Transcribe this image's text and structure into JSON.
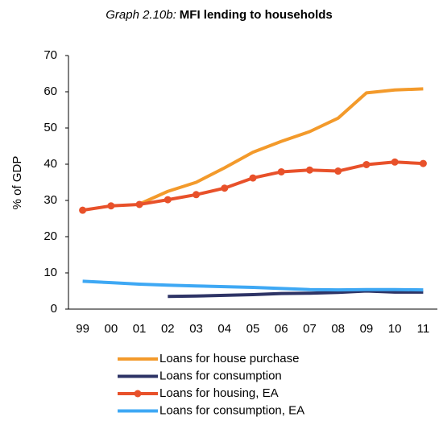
{
  "chart_data": {
    "type": "line",
    "title_label": "Graph 2.10b:",
    "title": "MFI lending to households",
    "y_label": "% of GDP",
    "categories": [
      "99",
      "00",
      "01",
      "02",
      "03",
      "04",
      "05",
      "06",
      "07",
      "08",
      "09",
      "10",
      "11"
    ],
    "series": [
      {
        "name": "Loans for house purchase",
        "color": "#f39a2b",
        "marker": false,
        "values": [
          null,
          null,
          29,
          32.5,
          35,
          39,
          43.3,
          46.3,
          49,
          52.7,
          59.7,
          60.5,
          60.8
        ]
      },
      {
        "name": "Loans for consumption",
        "color": "#2e3466",
        "marker": false,
        "values": [
          null,
          null,
          null,
          3.5,
          3.6,
          3.8,
          4.0,
          4.3,
          4.4,
          4.6,
          5.0,
          4.7,
          4.7
        ]
      },
      {
        "name": "Loans for housing, EA",
        "color": "#e8512a",
        "marker": true,
        "values": [
          27.3,
          28.5,
          28.9,
          30.2,
          31.6,
          33.4,
          36.2,
          37.9,
          38.4,
          38.1,
          39.9,
          40.6,
          40.2
        ]
      },
      {
        "name": "Loans for consumption, EA",
        "color": "#3ea8f4",
        "marker": false,
        "values": [
          7.7,
          7.3,
          6.9,
          6.6,
          6.4,
          6.2,
          6.0,
          5.7,
          5.4,
          5.3,
          5.4,
          5.4,
          5.3
        ]
      }
    ],
    "ylim": [
      0,
      70
    ],
    "yticks": [
      0,
      10,
      20,
      30,
      40,
      50,
      60,
      70
    ],
    "grid": false
  }
}
